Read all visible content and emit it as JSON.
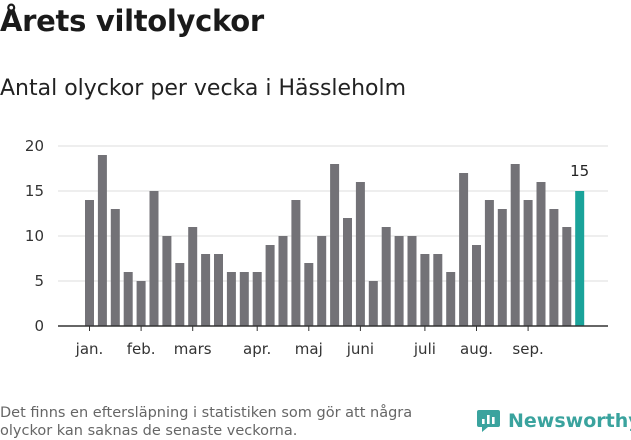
{
  "title": "Årets viltolyckor",
  "subtitle": "Antal olyckor per vecka i Hässleholm",
  "footnote": "Det finns en eftersläpning i statistiken som gör att några olyckor kan saknas de senaste veckorna.",
  "brand": {
    "name": "Newsworthy",
    "color": "#3aa39e",
    "icon": "newsworthy-logo-icon"
  },
  "chart_data": {
    "type": "bar",
    "xlabel": "",
    "ylabel": "",
    "ylim": [
      0,
      20
    ],
    "yticks": [
      0,
      5,
      10,
      15,
      20
    ],
    "grid": true,
    "legend": "none",
    "bar_color": "#737277",
    "highlight_color": "#1aa39a",
    "weeks": [
      1,
      2,
      3,
      4,
      5,
      6,
      7,
      8,
      9,
      10,
      11,
      12,
      13,
      14,
      15,
      16,
      17,
      18,
      19,
      20,
      21,
      22,
      23,
      24,
      25,
      26,
      27,
      28,
      29,
      30,
      31,
      32,
      33,
      34,
      35,
      36,
      37,
      38,
      39
    ],
    "values": [
      14,
      19,
      13,
      6,
      5,
      15,
      10,
      7,
      11,
      8,
      8,
      6,
      6,
      6,
      9,
      10,
      14,
      7,
      10,
      18,
      12,
      16,
      5,
      11,
      10,
      10,
      8,
      8,
      6,
      17,
      9,
      14,
      13,
      18,
      14,
      16,
      13,
      11,
      15
    ],
    "highlight_index": 38,
    "highlight_label": "15",
    "month_labels": [
      {
        "label": "jan.",
        "week": 1
      },
      {
        "label": "feb.",
        "week": 5
      },
      {
        "label": "mars",
        "week": 9
      },
      {
        "label": "apr.",
        "week": 14
      },
      {
        "label": "maj",
        "week": 18
      },
      {
        "label": "juni",
        "week": 22
      },
      {
        "label": "juli",
        "week": 27
      },
      {
        "label": "aug.",
        "week": 31
      },
      {
        "label": "sep.",
        "week": 35
      }
    ]
  }
}
